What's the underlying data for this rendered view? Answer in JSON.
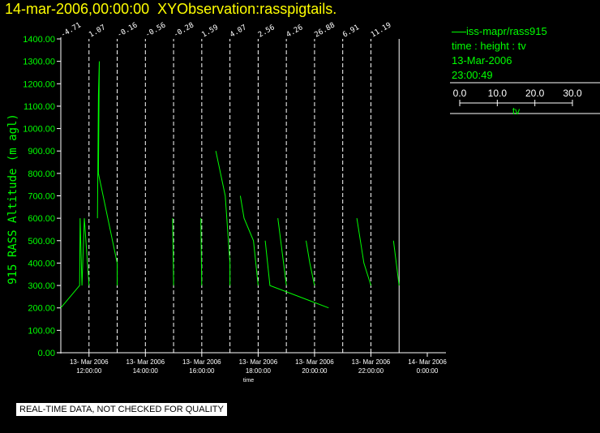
{
  "header": {
    "datetime": "14-mar-2006,00:00:00",
    "observation": "XYObservation:rasspigtails."
  },
  "legend": {
    "series_label": "iss-mapr/rass915",
    "description": "time : height : tv",
    "date": "13-Mar-2006",
    "time": "23:00:49",
    "scale_ticks": [
      "0.0",
      "10.0",
      "20.0",
      "30.0"
    ],
    "scale_label": "tv"
  },
  "notice": "REAL-TIME DATA, NOT CHECKED FOR QUALITY",
  "colors": {
    "title": "#ffff00",
    "data": "#00ff00",
    "axis": "#ffffff"
  },
  "chart_data": {
    "type": "line",
    "title": "",
    "xlabel": "time",
    "ylabel": "915 RASS Altitude (m agl)",
    "xlim": [
      "2006-03-13 11:00:00",
      "2006-03-14 00:00:00"
    ],
    "ylim": [
      0,
      1400
    ],
    "yticks": [
      "0.00",
      "100.00",
      "200.00",
      "300.00",
      "400.00",
      "500.00",
      "600.00",
      "700.00",
      "800.00",
      "900.00",
      "1000.00",
      "1100.00",
      "1200.00",
      "1300.00",
      "1400.00"
    ],
    "xticks": [
      {
        "t": "2006-03-13 12:00",
        "date": "13- Mar 2006",
        "time": "12:00:00"
      },
      {
        "t": "2006-03-13 14:00",
        "date": "13- Mar 2006",
        "time": "14:00:00"
      },
      {
        "t": "2006-03-13 16:00",
        "date": "13- Mar 2006",
        "time": "16:00:00"
      },
      {
        "t": "2006-03-13 18:00",
        "date": "13- Mar 2006",
        "time": "18:00:00"
      },
      {
        "t": "2006-03-13 20:00",
        "date": "13- Mar 2006",
        "time": "20:00:00"
      },
      {
        "t": "2006-03-13 22:00",
        "date": "13- Mar 2006",
        "time": "22:00:00"
      },
      {
        "t": "2006-03-14 00:00",
        "date": "14- Mar 2006",
        "time": "0:00:00"
      }
    ],
    "profile_times": [
      "2006-03-13 11:00",
      "2006-03-13 12:00",
      "2006-03-13 13:00",
      "2006-03-13 14:00",
      "2006-03-13 15:00",
      "2006-03-13 16:00",
      "2006-03-13 17:00",
      "2006-03-13 18:00",
      "2006-03-13 19:00",
      "2006-03-13 20:00",
      "2006-03-13 21:00",
      "2006-03-13 22:00",
      "2006-03-13 23:00"
    ],
    "profile_labels": [
      "-4.71",
      "1.07",
      "-0.16",
      "-0.56",
      "-0.28",
      "1.59",
      "4.07",
      "2.56",
      "4.26",
      "26.88",
      "6.91",
      "11.19",
      ""
    ],
    "series": [
      {
        "name": "iss-mapr/rass915",
        "points": [
          [
            "2006-03-13 11:00",
            200
          ],
          [
            "2006-03-13 11:40",
            300
          ],
          [
            "2006-03-13 11:41",
            600
          ],
          [
            "2006-03-13 11:45",
            300
          ],
          [
            "2006-03-13 11:50",
            600
          ],
          [
            "2006-03-13 12:00",
            300
          ]
        ]
      },
      {
        "name": "iss-mapr/rass915",
        "points": [
          [
            "2006-03-13 12:18",
            600
          ],
          [
            "2006-03-13 12:20",
            1150
          ],
          [
            "2006-03-13 12:22",
            1300
          ],
          [
            "2006-03-13 12:20",
            800
          ],
          [
            "2006-03-13 13:00",
            400
          ],
          [
            "2006-03-13 13:00",
            300
          ]
        ]
      },
      {
        "name": "iss-mapr/rass915",
        "points": [
          [
            "2006-03-13 14:58",
            600
          ],
          [
            "2006-03-13 15:00",
            300
          ]
        ]
      },
      {
        "name": "iss-mapr/rass915",
        "points": [
          [
            "2006-03-13 15:58",
            600
          ],
          [
            "2006-03-13 16:00",
            300
          ]
        ]
      },
      {
        "name": "iss-mapr/rass915",
        "points": [
          [
            "2006-03-13 16:30",
            900
          ],
          [
            "2006-03-13 16:50",
            700
          ],
          [
            "2006-03-13 17:00",
            400
          ],
          [
            "2006-03-13 17:00",
            300
          ]
        ]
      },
      {
        "name": "iss-mapr/rass915",
        "points": [
          [
            "2006-03-13 17:22",
            700
          ],
          [
            "2006-03-13 17:30",
            600
          ],
          [
            "2006-03-13 17:50",
            500
          ],
          [
            "2006-03-13 18:00",
            300
          ]
        ]
      },
      {
        "name": "iss-mapr/rass915",
        "points": [
          [
            "2006-03-13 18:15",
            500
          ],
          [
            "2006-03-13 18:20",
            400
          ],
          [
            "2006-03-13 18:25",
            300
          ],
          [
            "2006-03-13 20:30",
            200
          ]
        ]
      },
      {
        "name": "iss-mapr/rass915",
        "points": [
          [
            "2006-03-13 18:42",
            600
          ],
          [
            "2006-03-13 19:00",
            300
          ]
        ]
      },
      {
        "name": "iss-mapr/rass915",
        "points": [
          [
            "2006-03-13 19:42",
            500
          ],
          [
            "2006-03-13 19:50",
            400
          ],
          [
            "2006-03-13 20:00",
            300
          ]
        ]
      },
      {
        "name": "iss-mapr/rass915",
        "points": [
          [
            "2006-03-13 21:30",
            600
          ],
          [
            "2006-03-13 21:45",
            400
          ],
          [
            "2006-03-13 22:00",
            300
          ]
        ]
      },
      {
        "name": "iss-mapr/rass915",
        "points": [
          [
            "2006-03-13 22:48",
            500
          ],
          [
            "2006-03-13 23:00",
            300
          ]
        ]
      }
    ]
  }
}
